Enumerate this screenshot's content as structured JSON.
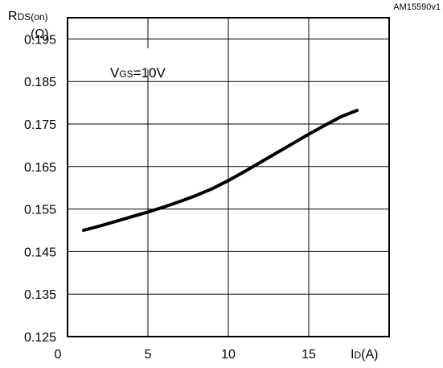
{
  "figure_id": "AM15590v1",
  "chart_data": {
    "type": "line",
    "title": "",
    "xlabel": "ID(A)",
    "xlabel_main": "I",
    "xlabel_sub": "D",
    "xlabel_unit": "(A)",
    "ylabel_main": "R",
    "ylabel_sub": "DS(on)",
    "ylabel_unit": "(Ω)",
    "xlim": [
      0,
      20
    ],
    "ylim": [
      0.125,
      0.2
    ],
    "xticks": [
      "0",
      "5",
      "10",
      "15"
    ],
    "yticks": [
      "0.195",
      "0.185",
      "0.175",
      "0.165",
      "0.155",
      "0.145",
      "0.135",
      "0.125"
    ],
    "grid": true,
    "annotation": {
      "main": "V",
      "sub": "GS",
      "rest": "=10V"
    },
    "series": [
      {
        "x": [
          1,
          2,
          3,
          4,
          5,
          6,
          7,
          8,
          9,
          10,
          11,
          12,
          13,
          14,
          15,
          16,
          17,
          18
        ],
        "y": [
          0.15,
          0.151,
          0.1521,
          0.1532,
          0.1543,
          0.1555,
          0.1568,
          0.1582,
          0.1598,
          0.1617,
          0.1638,
          0.166,
          0.1682,
          0.1704,
          0.1726,
          0.1747,
          0.1767,
          0.1782
        ]
      }
    ]
  }
}
